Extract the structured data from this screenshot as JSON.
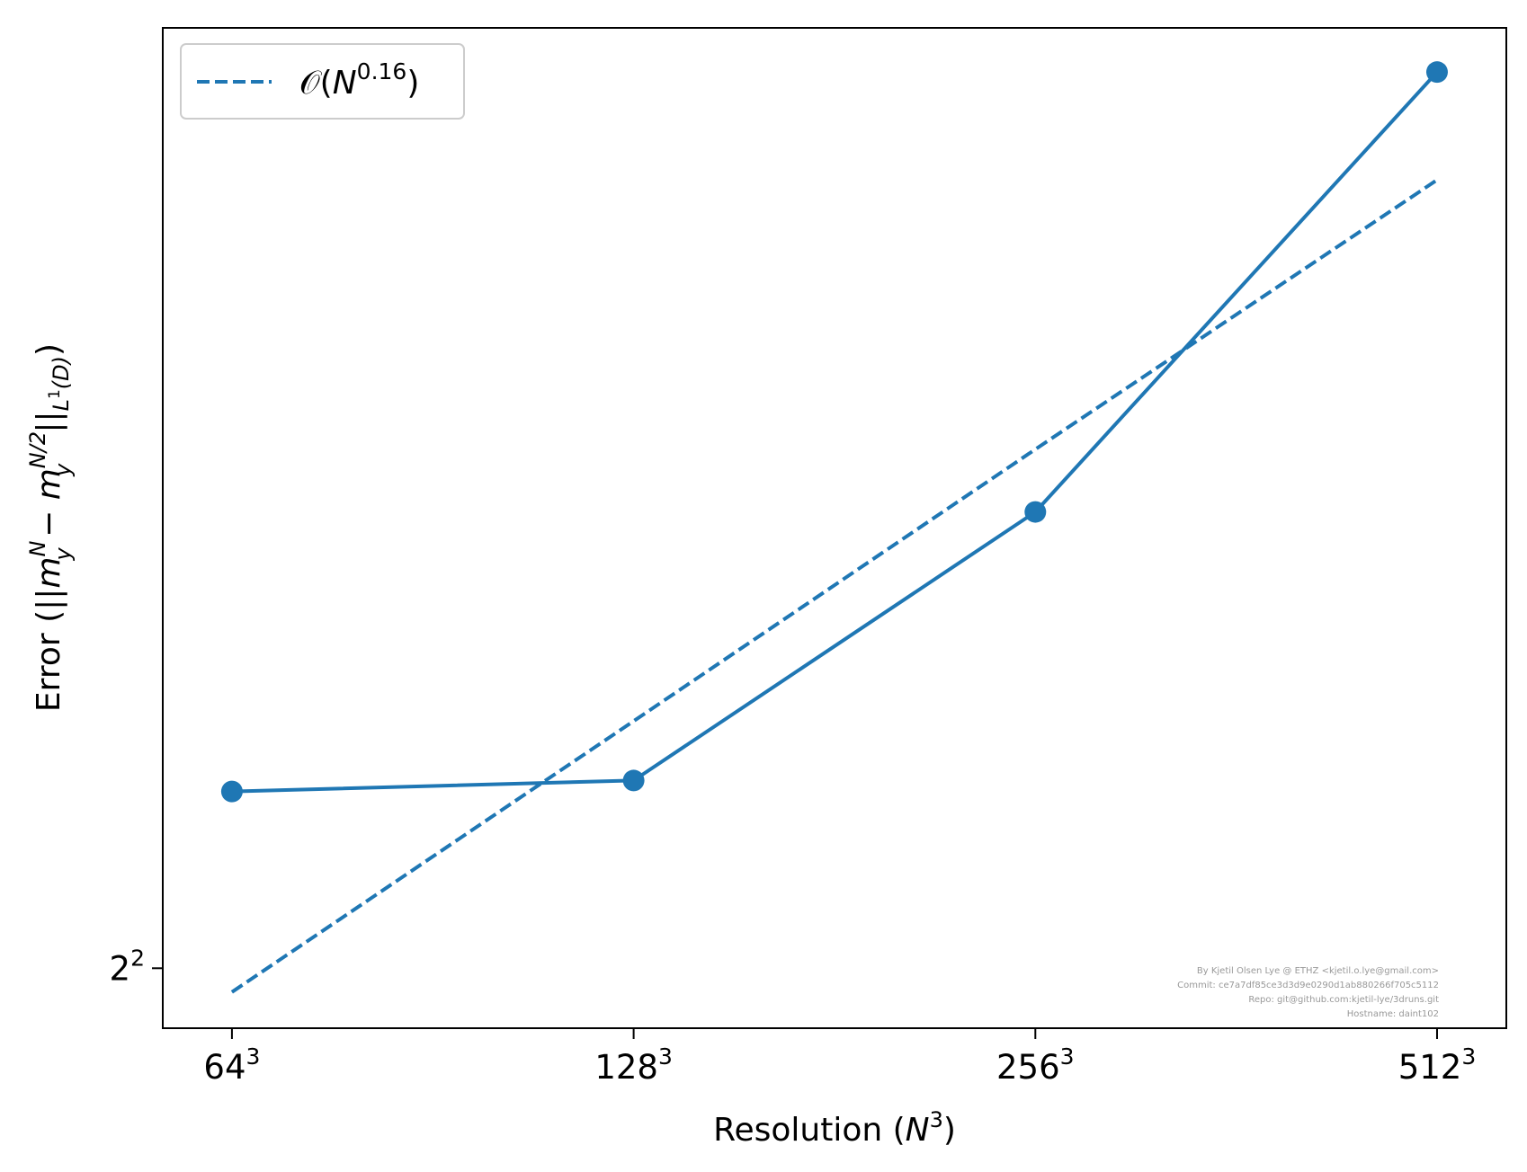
{
  "chart_data": {
    "type": "line",
    "x_scale": "log2",
    "y_scale": "log2",
    "x": [
      64,
      128,
      256,
      512
    ],
    "x_tick_labels": [
      {
        "base": "64",
        "exp": "3"
      },
      {
        "base": "128",
        "exp": "3"
      },
      {
        "base": "256",
        "exp": "3"
      },
      {
        "base": "512",
        "exp": "3"
      }
    ],
    "y_ticks": [
      {
        "value": 4,
        "base": "2",
        "exp": "2"
      }
    ],
    "xlim": [
      56.8,
      577
    ],
    "ylim": [
      3.9,
      5.95
    ],
    "series": [
      {
        "values": [
          4.31,
          4.33,
          4.85,
          5.84
        ],
        "style": "solid",
        "marker": "circle",
        "color": "#1f77b4"
      },
      {
        "name": "O(N^0.16)",
        "values": [
          3.96,
          4.44,
          4.98,
          5.58
        ],
        "style": "dashed",
        "marker": "none",
        "color": "#1f77b4"
      }
    ],
    "xlabel": "Resolution (N³)",
    "ylabel": "Error (||m_y^N − m_y^{N/2}||_{L¹(D)})",
    "legend": {
      "placement": "top-left",
      "entries": [
        {
          "parts": [
            "𝒪(",
            "N",
            "0.16",
            ")"
          ]
        }
      ]
    },
    "grid": false
  },
  "labels": {
    "xlabel_parts": [
      "Resolution (",
      "N",
      "3",
      ")"
    ],
    "ylabel_parts": [
      "Error (||",
      "m",
      "N",
      "y",
      " − ",
      "m",
      "N/2",
      "y",
      "||",
      "L",
      "1",
      "(D)",
      ")"
    ]
  },
  "credits": [
    "By Kjetil Olsen Lye @ ETHZ <kjetil.o.lye@gmail.com>",
    "Commit: ce7a7df85ce3d3d9e0290d1ab880266f705c5112",
    "Repo: git@github.com:kjetil-lye/3druns.git",
    "Hostname: daint102"
  ],
  "colors": {
    "series": "#1f77b4",
    "axes": "#000000",
    "legend_border": "#cccccc",
    "credit_text": "#999999"
  }
}
